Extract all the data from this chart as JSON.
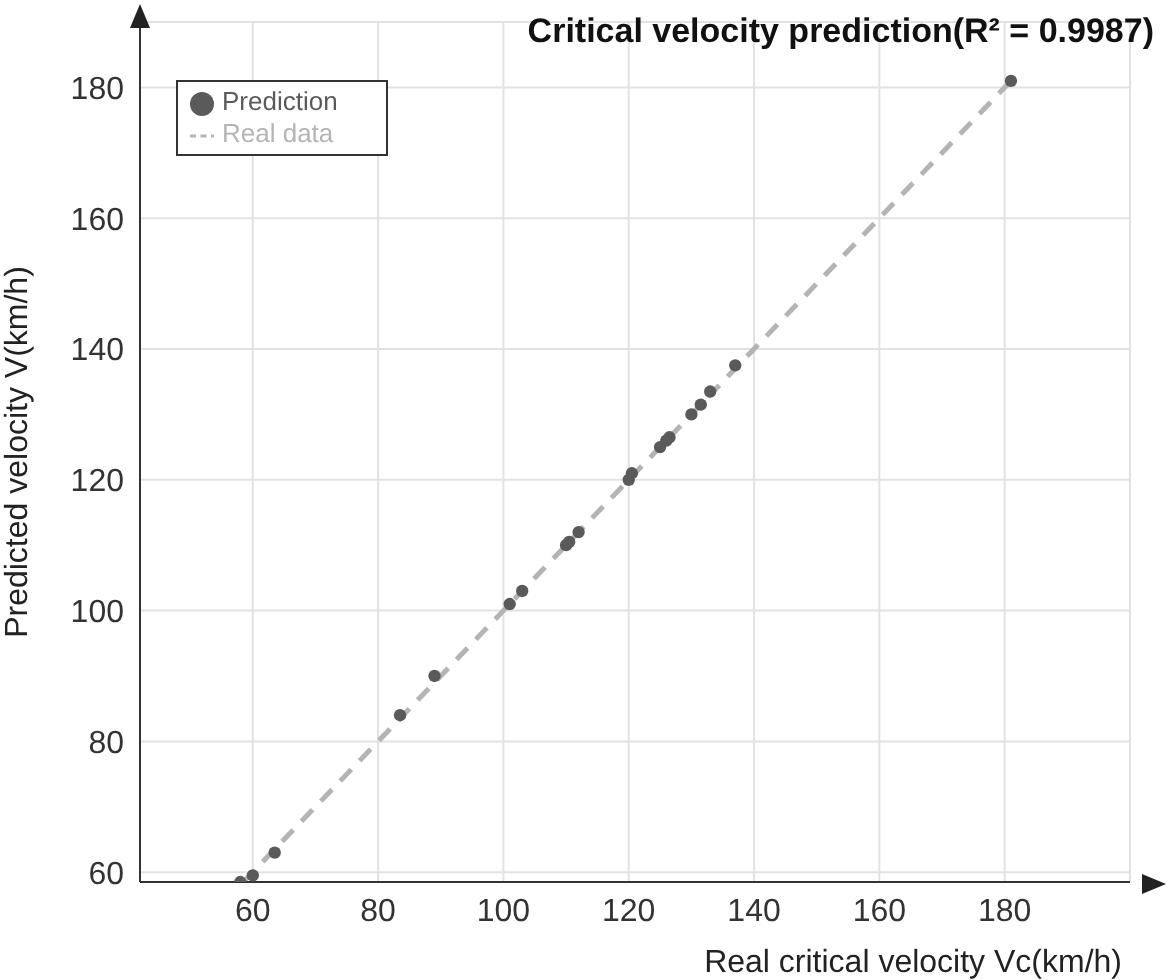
{
  "chart_data": {
    "type": "scatter",
    "title": "Critical velocity prediction(R² = 0.9987)",
    "xlabel": "Real critical velocity Vc(km/h)",
    "ylabel": "Predicted velocity V(km/h)",
    "xlim": [
      42,
      200
    ],
    "ylim": [
      58.5,
      190
    ],
    "xticks": [
      60,
      80,
      100,
      120,
      140,
      160,
      180
    ],
    "yticks": [
      60,
      80,
      100,
      120,
      140,
      160,
      180
    ],
    "grid": true,
    "legend": "top left",
    "series": [
      {
        "name": "Prediction",
        "marker": "circle",
        "color": "#5a5a5a",
        "x": [
          58,
          60,
          63.5,
          83.5,
          89,
          101,
          103,
          110,
          110.5,
          112,
          120,
          120.5,
          125,
          126,
          126.5,
          130,
          131.5,
          133,
          137,
          181
        ],
        "values": [
          58.5,
          59.5,
          63,
          84,
          90,
          101,
          103,
          110,
          110.5,
          112,
          120,
          121,
          125,
          126,
          126.5,
          130,
          131.5,
          133.5,
          137.5,
          181
        ]
      },
      {
        "name": "Real data",
        "type": "line",
        "color": "#b4b4b4",
        "line_style": "dashed",
        "x": [
          58.5,
          181
        ],
        "values": [
          58.5,
          181
        ]
      }
    ]
  }
}
